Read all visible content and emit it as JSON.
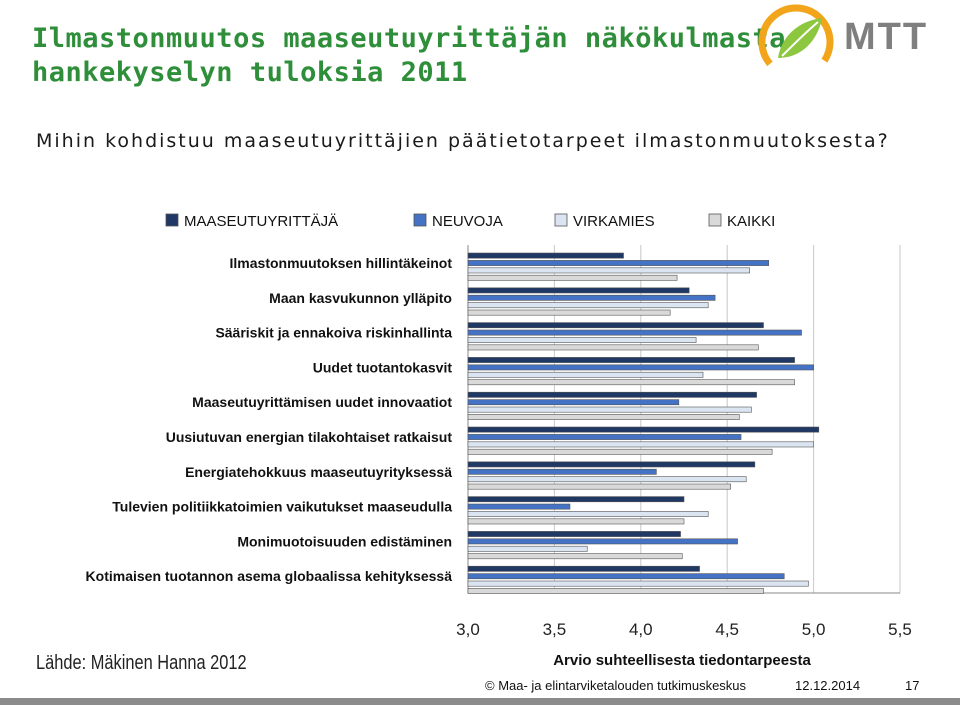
{
  "title": "Ilmastonmuutos maaseutuyrittäjän näkökulmasta: hankekyselyn tuloksia 2011",
  "subtitle": "Mihin kohdistuu maaseutuyrittäjien päätietotarpeet ilmastonmuutoksesta?",
  "logo": {
    "text": "MTT",
    "icon": "leaf-logo-icon"
  },
  "source": "Lähde: Mäkinen Hanna 2012",
  "footer": {
    "copyright": "© Maa- ja elintarviketalouden tutkimuskeskus",
    "date": "12.12.2014",
    "page": "17"
  },
  "chart_data": {
    "type": "bar",
    "orientation": "horizontal",
    "xlabel": "Arvio suhteellisesta tiedontarpeesta",
    "xlim": [
      3.0,
      5.5
    ],
    "xticks": [
      "3,0",
      "3,5",
      "4,0",
      "4,5",
      "5,0",
      "5,5"
    ],
    "grid": true,
    "legend_position": "top",
    "categories": [
      "Ilmastonmuutoksen hillintäkeinot",
      "Maan kasvukunnon ylläpito",
      "Sääriskit ja ennakoiva riskinhallinta",
      "Uudet tuotantokasvit",
      "Maaseutuyrittämisen uudet innovaatiot",
      "Uusiutuvan energian tilakohtaiset ratkaisut",
      "Energiatehokkuus maaseutuyrityksessä",
      "Tulevien politiikkatoimien vaikutukset maaseudulla",
      "Monimuotoisuuden edistäminen",
      "Kotimaisen tuotannon asema globaalissa kehityksessä"
    ],
    "series": [
      {
        "name": "MAASEUTUYRITTÄJÄ",
        "color": "#1f3864",
        "values": [
          3.9,
          4.28,
          4.71,
          4.89,
          4.67,
          5.03,
          4.66,
          4.25,
          4.23,
          4.34
        ]
      },
      {
        "name": "NEUVOJA",
        "color": "#4472c4",
        "values": [
          4.74,
          4.43,
          4.93,
          5.0,
          4.22,
          4.58,
          4.09,
          3.59,
          4.56,
          4.83
        ]
      },
      {
        "name": "VIRKAMIES",
        "color": "#dbe5f1",
        "values": [
          4.63,
          4.39,
          4.32,
          4.36,
          4.64,
          5.0,
          4.61,
          4.39,
          3.69,
          4.97
        ]
      },
      {
        "name": "KAIKKI",
        "color": "#d9d9d9",
        "values": [
          4.21,
          4.17,
          4.68,
          4.89,
          4.57,
          4.76,
          4.52,
          4.25,
          4.24,
          4.71
        ]
      }
    ]
  }
}
